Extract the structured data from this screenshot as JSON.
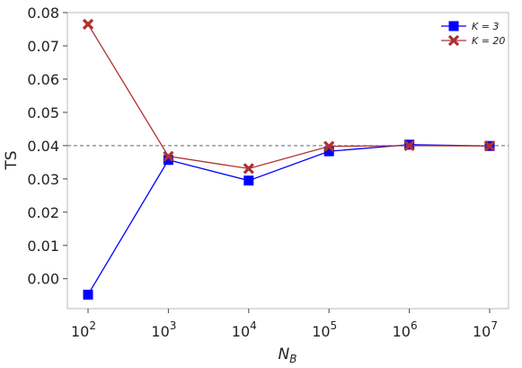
{
  "chart_data": {
    "type": "line",
    "xscale": "log",
    "x": [
      100,
      1000,
      10000,
      100000,
      1000000,
      10000000
    ],
    "x_tick_labels": [
      {
        "base": "10",
        "exp": "2"
      },
      {
        "base": "10",
        "exp": "3"
      },
      {
        "base": "10",
        "exp": "4"
      },
      {
        "base": "10",
        "exp": "5"
      },
      {
        "base": "10",
        "exp": "6"
      },
      {
        "base": "10",
        "exp": "7"
      }
    ],
    "y_ticks": [
      "0.00",
      "0.01",
      "0.02",
      "0.03",
      "0.04",
      "0.05",
      "0.06",
      "0.07",
      "0.08"
    ],
    "ylim": [
      -0.009,
      0.08
    ],
    "xlabel": {
      "main": "N",
      "sub": "B"
    },
    "ylabel": "TS",
    "reference_line": {
      "y": 0.04,
      "style": "dashed",
      "color": "#666666"
    },
    "series": [
      {
        "name": "K = 3",
        "color": "#0000ff",
        "marker": "square",
        "values": [
          -0.0048,
          0.0357,
          0.0295,
          0.0383,
          0.0403,
          0.0399
        ]
      },
      {
        "name": "K = 20",
        "color": "#b03030",
        "marker": "x",
        "values": [
          0.0765,
          0.0368,
          0.0331,
          0.0398,
          0.04,
          0.0399
        ]
      }
    ],
    "legend": {
      "position": "top-right"
    },
    "grid": false
  }
}
